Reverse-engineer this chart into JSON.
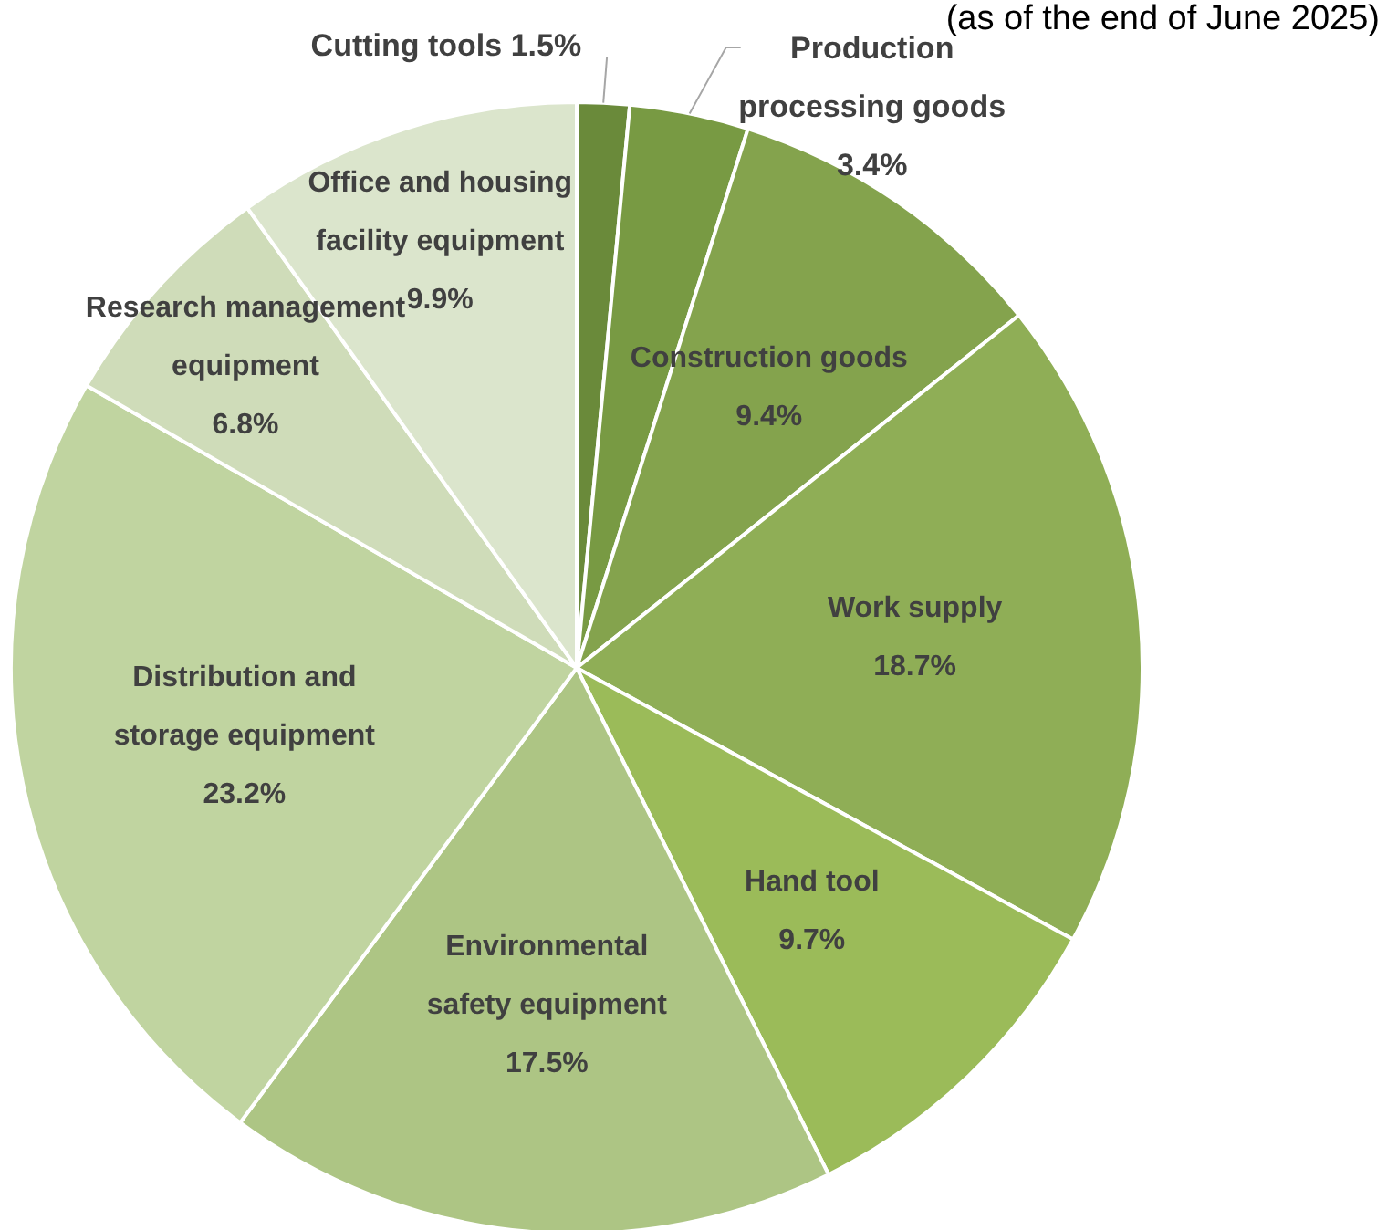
{
  "chart_data": {
    "type": "pie",
    "categories": [
      "Cutting tools",
      "Production processing goods",
      "Construction goods",
      "Work supply",
      "Hand tool",
      "Environmental safety equipment",
      "Distribution and storage equipment",
      "Research management equipment",
      "Office and housing facility equipment"
    ],
    "values": [
      1.5,
      3.4,
      9.4,
      18.7,
      9.7,
      17.5,
      23.2,
      6.8,
      9.9
    ],
    "colors": [
      "#6a8a3a",
      "#789a43",
      "#84a34d",
      "#8fae56",
      "#9bbb59",
      "#adc584",
      "#c0d4a0",
      "#cfdcb9",
      "#dbe5cc"
    ],
    "value_labels": [
      "1.5%",
      "3.4%",
      "9.4%",
      "18.7%",
      "9.7%",
      "17.5%",
      "23.2%",
      "6.8%",
      "9.9%"
    ],
    "annotations": [
      "(as of the end of June 2025)"
    ]
  }
}
